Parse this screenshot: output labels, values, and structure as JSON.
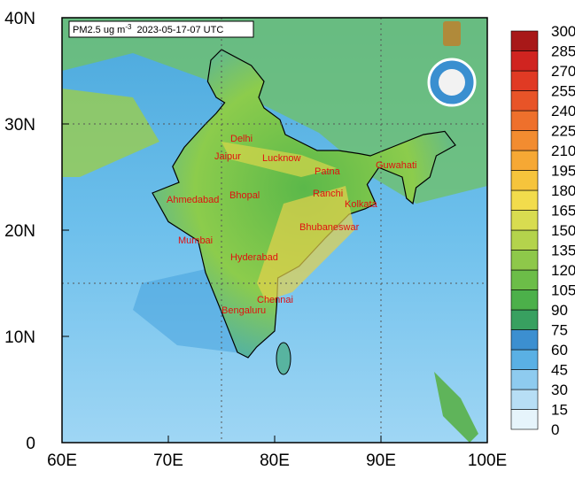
{
  "header": {
    "title": "PM2.5 ug m",
    "title_superscript": "-3",
    "timestamp": "2023-05-17-07 UTC"
  },
  "axes": {
    "y_labels": [
      "40N",
      "30N",
      "20N",
      "10N",
      "0"
    ],
    "x_labels": [
      "60E",
      "70E",
      "80E",
      "90E",
      "100E"
    ]
  },
  "colorbar": {
    "labels": [
      0,
      15,
      30,
      45,
      60,
      75,
      90,
      105,
      120,
      135,
      150,
      165,
      180,
      195,
      210,
      225,
      240,
      255,
      270,
      285,
      300
    ]
  },
  "cities": [
    "Delhi",
    "Jaipur",
    "Lucknow",
    "Patna",
    "Guwahati",
    "Ahmedabad",
    "Bhopal",
    "Ranchi",
    "Kolkata",
    "Mumbai",
    "Bhubaneswar",
    "Hyderabad",
    "Chennai",
    "Bengaluru"
  ]
}
